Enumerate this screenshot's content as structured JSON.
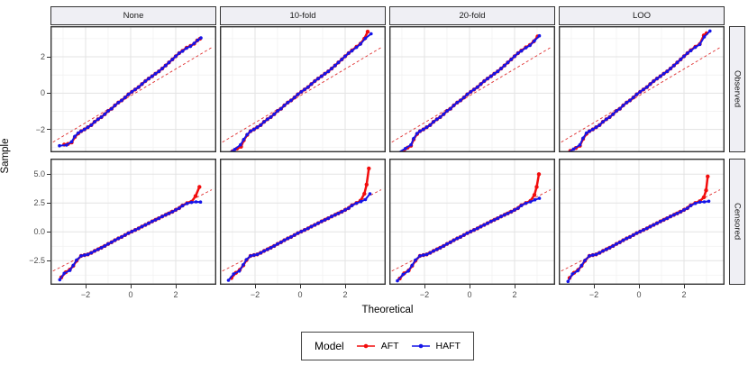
{
  "chart_data": {
    "type": "scatter",
    "subtype": "faceted-qq-plot-with-lines",
    "title": "",
    "xlabel": "Theoretical",
    "ylabel": "Sample",
    "facet_cols": [
      "None",
      "10-fold",
      "20-fold",
      "LOO"
    ],
    "facet_rows": [
      "Observed",
      "Censored"
    ],
    "xlim": [
      -3.56,
      3.8
    ],
    "x_ticks": {
      "values": [
        -2,
        0,
        2
      ],
      "labels": [
        "−2",
        "0",
        "2"
      ],
      "minor": [
        -3,
        -1,
        1,
        3
      ]
    },
    "grid": true,
    "legend": {
      "title": "Model",
      "position": "bottom",
      "items": [
        {
          "label": "AFT",
          "color": "#F20D0D"
        },
        {
          "label": "HAFT",
          "color": "#1414E8"
        }
      ]
    },
    "rows": [
      {
        "label": "Observed",
        "ylim": [
          -3.26,
          3.69
        ],
        "y_ticks": {
          "values": [
            -2,
            0,
            2
          ],
          "labels": [
            "−2",
            "0",
            "2"
          ],
          "minor": [
            -3,
            -1,
            1,
            3
          ]
        },
        "ref_line": {
          "slope": 0.74,
          "intercept": -0.15,
          "style": "dashed",
          "color": "#E03030",
          "x_range": [
            -3.45,
            3.6
          ]
        },
        "shared_mid": {
          "x": [
            -2.2,
            -2.05,
            -1.9,
            -1.75,
            -1.6,
            -1.45,
            -1.3,
            -1.15,
            -1.0,
            -0.85,
            -0.7,
            -0.55,
            -0.4,
            -0.25,
            -0.1,
            0.05,
            0.2,
            0.35,
            0.5,
            0.65,
            0.8,
            0.95,
            1.1,
            1.25,
            1.4,
            1.55,
            1.7,
            1.85,
            2.0,
            2.15
          ],
          "y": [
            -2.1,
            -2.0,
            -1.88,
            -1.76,
            -1.58,
            -1.44,
            -1.32,
            -1.16,
            -0.98,
            -0.86,
            -0.68,
            -0.52,
            -0.4,
            -0.24,
            -0.07,
            0.07,
            0.2,
            0.33,
            0.5,
            0.66,
            0.8,
            0.93,
            1.07,
            1.2,
            1.35,
            1.52,
            1.69,
            1.86,
            2.03,
            2.2
          ]
        }
      },
      {
        "label": "Censored",
        "ylim": [
          -4.59,
          6.35
        ],
        "y_ticks": {
          "values": [
            -2.5,
            0,
            2.5,
            5
          ],
          "labels": [
            "−2.5",
            "0.0",
            "2.5",
            "5.0"
          ],
          "minor": [
            -3.75,
            -1.25,
            1.25,
            3.75
          ]
        },
        "ref_line": {
          "slope": 1.0,
          "intercept": 0.05,
          "style": "dashed",
          "color": "#E03030",
          "x_range": [
            -3.45,
            3.6
          ]
        },
        "shared_mid": {
          "x": [
            -2.2,
            -2.05,
            -1.9,
            -1.75,
            -1.6,
            -1.45,
            -1.3,
            -1.15,
            -1.0,
            -0.85,
            -0.7,
            -0.55,
            -0.4,
            -0.25,
            -0.1,
            0.05,
            0.2,
            0.35,
            0.5,
            0.65,
            0.8,
            0.95,
            1.1,
            1.25,
            1.4,
            1.55,
            1.7,
            1.85,
            2.0,
            2.15
          ],
          "y": [
            -2.08,
            -2.02,
            -1.96,
            -1.82,
            -1.66,
            -1.52,
            -1.38,
            -1.22,
            -1.05,
            -0.9,
            -0.73,
            -0.57,
            -0.44,
            -0.28,
            -0.11,
            0.03,
            0.16,
            0.3,
            0.46,
            0.6,
            0.75,
            0.9,
            1.04,
            1.18,
            1.33,
            1.47,
            1.6,
            1.74,
            1.9,
            2.05
          ]
        }
      }
    ],
    "panels": [
      {
        "row": "Observed",
        "col": "None",
        "AFT": {
          "lower": [
            [
              -2.95,
              -2.84
            ],
            [
              -2.78,
              -2.8
            ],
            [
              -2.62,
              -2.72
            ],
            [
              -2.48,
              -2.42
            ],
            [
              -2.33,
              -2.22
            ]
          ],
          "upper": [
            [
              2.3,
              2.33
            ],
            [
              2.48,
              2.5
            ],
            [
              2.65,
              2.6
            ],
            [
              2.82,
              2.72
            ],
            [
              2.95,
              2.9
            ],
            [
              3.08,
              3.0
            ]
          ]
        },
        "HAFT": {
          "lower": [
            [
              -3.16,
              -2.9
            ],
            [
              -2.85,
              -2.86
            ],
            [
              -2.62,
              -2.68
            ],
            [
              -2.48,
              -2.38
            ],
            [
              -2.33,
              -2.2
            ]
          ],
          "upper": [
            [
              2.3,
              2.31
            ],
            [
              2.48,
              2.48
            ],
            [
              2.65,
              2.58
            ],
            [
              2.82,
              2.74
            ],
            [
              2.98,
              2.92
            ],
            [
              3.12,
              3.04
            ]
          ]
        }
      },
      {
        "row": "Observed",
        "col": "10-fold",
        "AFT": {
          "lower": [
            [
              -3.0,
              -3.2
            ],
            [
              -2.8,
              -3.05
            ],
            [
              -2.62,
              -2.95
            ],
            [
              -2.5,
              -2.6
            ],
            [
              -2.35,
              -2.3
            ]
          ],
          "upper": [
            [
              2.3,
              2.35
            ],
            [
              2.5,
              2.55
            ],
            [
              2.68,
              2.72
            ],
            [
              2.85,
              3.0
            ],
            [
              3.0,
              3.38
            ]
          ]
        },
        "HAFT": {
          "lower": [
            [
              -3.22,
              -3.32
            ],
            [
              -2.9,
              -3.1
            ],
            [
              -2.65,
              -2.85
            ],
            [
              -2.5,
              -2.55
            ],
            [
              -2.35,
              -2.28
            ]
          ],
          "upper": [
            [
              2.3,
              2.33
            ],
            [
              2.5,
              2.52
            ],
            [
              2.68,
              2.7
            ],
            [
              2.9,
              3.02
            ],
            [
              3.15,
              3.27
            ]
          ]
        }
      },
      {
        "row": "Observed",
        "col": "20-fold",
        "AFT": {
          "lower": [
            [
              -2.95,
              -3.22
            ],
            [
              -2.75,
              -3.0
            ],
            [
              -2.6,
              -2.9
            ],
            [
              -2.48,
              -2.55
            ],
            [
              -2.33,
              -2.25
            ]
          ],
          "upper": [
            [
              2.3,
              2.34
            ],
            [
              2.5,
              2.52
            ],
            [
              2.68,
              2.65
            ],
            [
              2.85,
              2.85
            ],
            [
              3.02,
              3.12
            ]
          ]
        },
        "HAFT": {
          "lower": [
            [
              -3.2,
              -3.3
            ],
            [
              -2.85,
              -3.05
            ],
            [
              -2.6,
              -2.85
            ],
            [
              -2.48,
              -2.5
            ],
            [
              -2.33,
              -2.22
            ]
          ],
          "upper": [
            [
              2.3,
              2.32
            ],
            [
              2.5,
              2.5
            ],
            [
              2.68,
              2.63
            ],
            [
              2.88,
              2.88
            ],
            [
              3.1,
              3.16
            ]
          ]
        }
      },
      {
        "row": "Observed",
        "col": "LOO",
        "AFT": {
          "lower": [
            [
              -3.05,
              -3.18
            ],
            [
              -2.8,
              -3.02
            ],
            [
              -2.62,
              -2.9
            ],
            [
              -2.48,
              -2.52
            ],
            [
              -2.33,
              -2.24
            ]
          ],
          "upper": [
            [
              2.3,
              2.36
            ],
            [
              2.5,
              2.55
            ],
            [
              2.7,
              2.7
            ],
            [
              2.88,
              3.18
            ],
            [
              3.0,
              3.3
            ]
          ]
        },
        "HAFT": {
          "lower": [
            [
              -3.25,
              -3.35
            ],
            [
              -2.9,
              -3.08
            ],
            [
              -2.62,
              -2.85
            ],
            [
              -2.48,
              -2.48
            ],
            [
              -2.33,
              -2.2
            ]
          ],
          "upper": [
            [
              2.3,
              2.34
            ],
            [
              2.5,
              2.53
            ],
            [
              2.7,
              2.68
            ],
            [
              2.9,
              3.1
            ],
            [
              3.15,
              3.42
            ]
          ]
        }
      },
      {
        "row": "Censored",
        "col": "None",
        "AFT": {
          "lower": [
            [
              -3.08,
              -3.95
            ],
            [
              -2.88,
              -3.5
            ],
            [
              -2.7,
              -3.28
            ],
            [
              -2.55,
              -2.95
            ],
            [
              -2.4,
              -2.5
            ]
          ],
          "upper": [
            [
              2.3,
              2.28
            ],
            [
              2.5,
              2.48
            ],
            [
              2.7,
              2.6
            ],
            [
              2.88,
              3.1
            ],
            [
              3.05,
              3.9
            ]
          ]
        },
        "HAFT": {
          "lower": [
            [
              -3.15,
              -4.15
            ],
            [
              -2.95,
              -3.6
            ],
            [
              -2.7,
              -3.35
            ],
            [
              -2.55,
              -2.9
            ],
            [
              -2.4,
              -2.45
            ]
          ],
          "upper": [
            [
              2.3,
              2.26
            ],
            [
              2.5,
              2.46
            ],
            [
              2.7,
              2.55
            ],
            [
              2.9,
              2.6
            ],
            [
              3.1,
              2.58
            ]
          ]
        }
      },
      {
        "row": "Censored",
        "col": "10-fold",
        "AFT": {
          "lower": [
            [
              -3.05,
              -4.0
            ],
            [
              -2.85,
              -3.55
            ],
            [
              -2.68,
              -3.3
            ],
            [
              -2.52,
              -2.9
            ],
            [
              -2.38,
              -2.45
            ]
          ],
          "upper": [
            [
              2.3,
              2.3
            ],
            [
              2.5,
              2.5
            ],
            [
              2.68,
              2.7
            ],
            [
              2.85,
              3.3
            ],
            [
              2.95,
              4.1
            ],
            [
              3.05,
              5.5
            ]
          ]
        },
        "HAFT": {
          "lower": [
            [
              -3.18,
              -4.2
            ],
            [
              -2.95,
              -3.65
            ],
            [
              -2.7,
              -3.4
            ],
            [
              -2.52,
              -2.85
            ],
            [
              -2.38,
              -2.4
            ]
          ],
          "upper": [
            [
              2.3,
              2.28
            ],
            [
              2.5,
              2.48
            ],
            [
              2.7,
              2.62
            ],
            [
              2.9,
              2.8
            ],
            [
              3.1,
              3.3
            ]
          ]
        }
      },
      {
        "row": "Censored",
        "col": "20-fold",
        "AFT": {
          "lower": [
            [
              -3.1,
              -4.05
            ],
            [
              -2.9,
              -3.6
            ],
            [
              -2.7,
              -3.35
            ],
            [
              -2.55,
              -2.95
            ],
            [
              -2.4,
              -2.5
            ]
          ],
          "upper": [
            [
              2.3,
              2.3
            ],
            [
              2.5,
              2.5
            ],
            [
              2.7,
              2.68
            ],
            [
              2.88,
              3.2
            ],
            [
              2.98,
              3.9
            ],
            [
              3.08,
              5.0
            ]
          ]
        },
        "HAFT": {
          "lower": [
            [
              -3.2,
              -4.25
            ],
            [
              -2.95,
              -3.7
            ],
            [
              -2.72,
              -3.4
            ],
            [
              -2.55,
              -2.9
            ],
            [
              -2.4,
              -2.45
            ]
          ],
          "upper": [
            [
              2.3,
              2.28
            ],
            [
              2.5,
              2.48
            ],
            [
              2.7,
              2.6
            ],
            [
              2.9,
              2.78
            ],
            [
              3.1,
              2.9
            ]
          ]
        }
      },
      {
        "row": "Censored",
        "col": "LOO",
        "AFT": {
          "lower": [
            [
              -3.08,
              -4.0
            ],
            [
              -2.88,
              -3.55
            ],
            [
              -2.7,
              -3.3
            ],
            [
              -2.55,
              -2.95
            ],
            [
              -2.4,
              -2.52
            ]
          ],
          "upper": [
            [
              2.3,
              2.3
            ],
            [
              2.5,
              2.5
            ],
            [
              2.7,
              2.65
            ],
            [
              2.88,
              3.0
            ],
            [
              2.98,
              3.6
            ],
            [
              3.05,
              4.8
            ]
          ]
        },
        "HAFT": {
          "lower": [
            [
              -3.15,
              -4.3
            ],
            [
              -2.95,
              -3.65
            ],
            [
              -2.72,
              -3.38
            ],
            [
              -2.55,
              -2.92
            ],
            [
              -2.4,
              -2.48
            ]
          ],
          "upper": [
            [
              2.3,
              2.28
            ],
            [
              2.5,
              2.47
            ],
            [
              2.7,
              2.58
            ],
            [
              2.9,
              2.6
            ],
            [
              3.1,
              2.65
            ]
          ]
        }
      }
    ]
  },
  "style": {
    "panel_background": "#FFFFFF",
    "panel_border": "#333333",
    "grid_major": "#E3E3E3",
    "grid_minor": "#F1F1F1",
    "strip_fill": "#EFEFF4",
    "strip_border": "#333333",
    "axis_text": "#4D4D4D",
    "tick_mark": "#333333"
  }
}
